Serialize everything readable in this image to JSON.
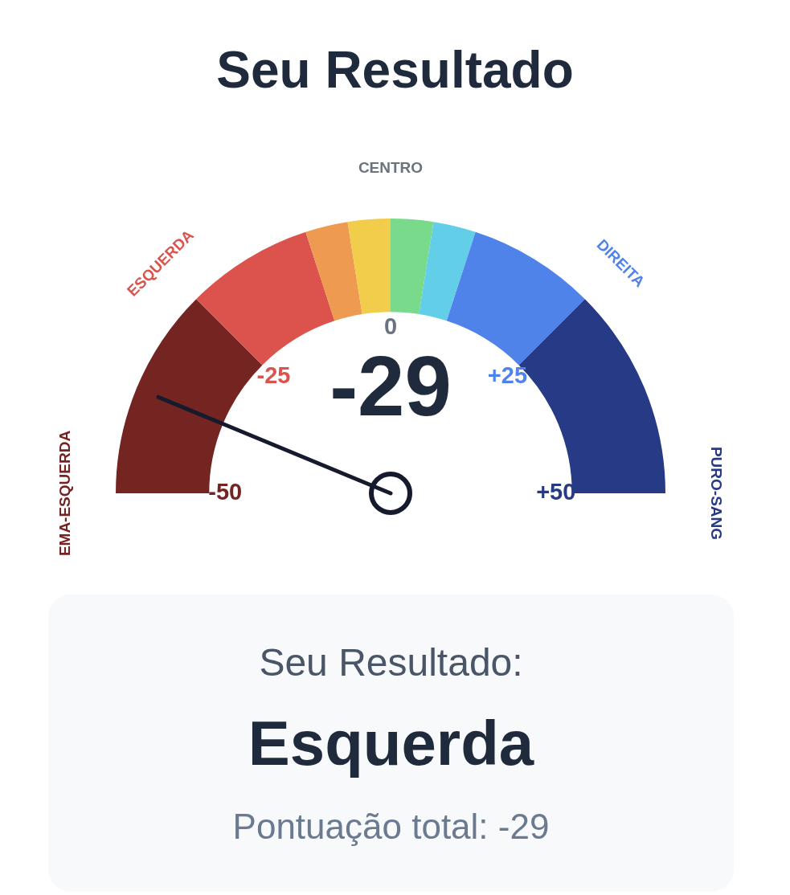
{
  "chart_data": [
    {
      "type": "donut",
      "title": "Seu Resultado",
      "categories": [
        "EMA-ESQUERDA",
        "ESQUERDA",
        null,
        null,
        null,
        null,
        "DIREITA",
        "PURO-SANG"
      ],
      "values": [
        25,
        15,
        5,
        5,
        5,
        5,
        15,
        25
      ],
      "colors": [
        "#742522",
        "#dc524d",
        "#ee9a50",
        "#f2cd4b",
        "#78da8a",
        "#62cee8",
        "#4f83ea",
        "#263a86"
      ],
      "needle": "EMA-ESQUERDA",
      "annotations": [
        "-29",
        "CENTRO",
        "-50",
        "-25",
        "0",
        "+25",
        "+50"
      ]
    },
    {
      "type": "other",
      "title": "Seu Resultado:",
      "annotations": [
        "Esquerda",
        "Pontuação total: -29"
      ]
    }
  ]
}
